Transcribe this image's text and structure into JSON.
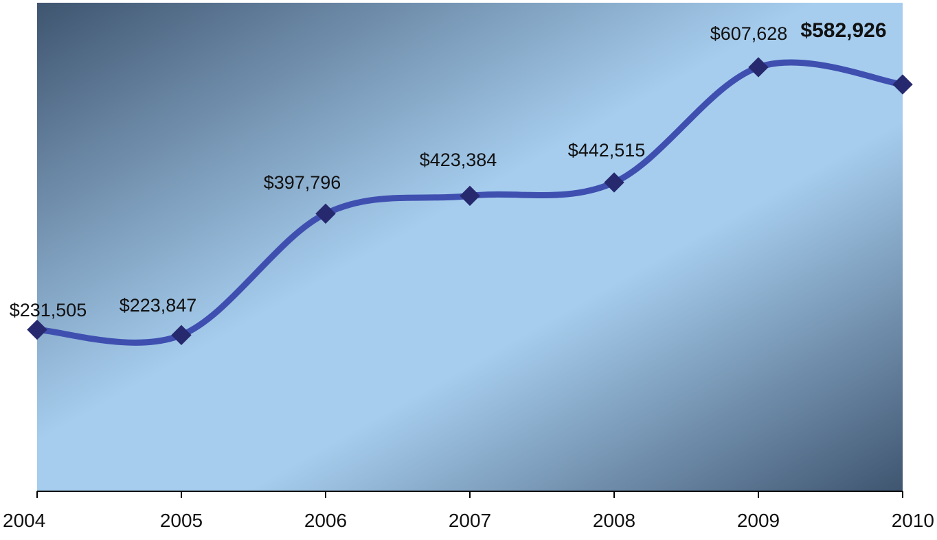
{
  "chart_data": {
    "type": "line",
    "title": "",
    "xlabel": "",
    "ylabel": "",
    "categories": [
      "2004",
      "2005",
      "2006",
      "2007",
      "2008",
      "2009",
      "2010"
    ],
    "values": [
      231505,
      223847,
      397796,
      423384,
      442515,
      607628,
      582926
    ],
    "data_labels": [
      "$231,505",
      "$223,847",
      "$397,796",
      "$423,384",
      "$442,515",
      "$607,628",
      "$582,926"
    ],
    "highlight_last_label": true,
    "smooth": true,
    "marker": "diamond",
    "ylim": [
      0,
      700000
    ],
    "y_axis_visible": false,
    "grid": false,
    "colors": {
      "line": "#3f4fb0",
      "marker": "#27296f",
      "bg_light": "#a6cdee",
      "bg_dark": "#3f5570",
      "axis": "#000000"
    }
  }
}
